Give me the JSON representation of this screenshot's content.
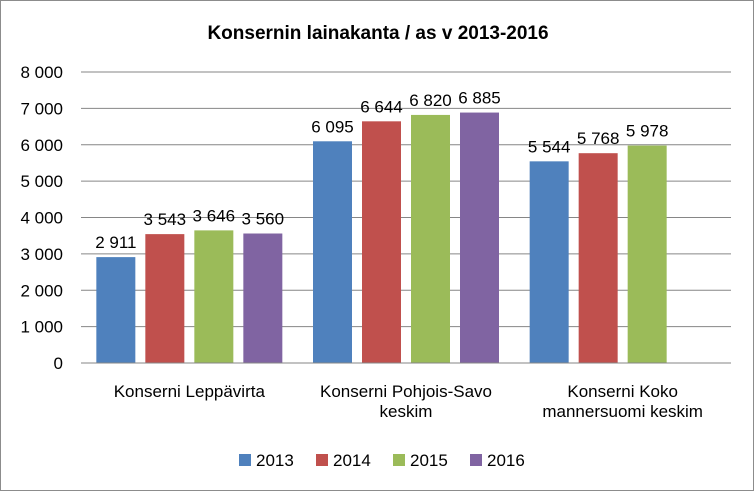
{
  "chart_data": {
    "type": "bar",
    "title": "Konsernin lainakanta / as v 2013-2016",
    "xlabel": "",
    "ylabel": "",
    "categories": [
      [
        "Konserni Leppävirta"
      ],
      [
        "Konserni Pohjois-Savo",
        "keskim"
      ],
      [
        "Konserni Koko",
        "mannersuomi keskim"
      ]
    ],
    "series": [
      {
        "name": "2013",
        "color": "#4f81bd",
        "values": [
          2911,
          6095,
          5544
        ],
        "labels": [
          "2 911",
          "6 095",
          "5 544"
        ]
      },
      {
        "name": "2014",
        "color": "#c0504d",
        "values": [
          3543,
          6644,
          5768
        ],
        "labels": [
          "3 543",
          "6 644",
          "5 768"
        ]
      },
      {
        "name": "2015",
        "color": "#9bbb59",
        "values": [
          3646,
          6820,
          5978
        ],
        "labels": [
          "3 646",
          "6 820",
          "5 978"
        ]
      },
      {
        "name": "2016",
        "color": "#8064a2",
        "values": [
          3560,
          6885,
          null
        ],
        "labels": [
          "3 560",
          "6 885",
          ""
        ]
      }
    ],
    "ylim": [
      0,
      8000
    ],
    "yticks": [
      0,
      1000,
      2000,
      3000,
      4000,
      5000,
      6000,
      7000,
      8000
    ],
    "ytick_labels": [
      "0",
      "1 000",
      "2 000",
      "3 000",
      "4 000",
      "5 000",
      "6 000",
      "7 000",
      "8 000"
    ],
    "grid": true,
    "legend_position": "bottom"
  }
}
